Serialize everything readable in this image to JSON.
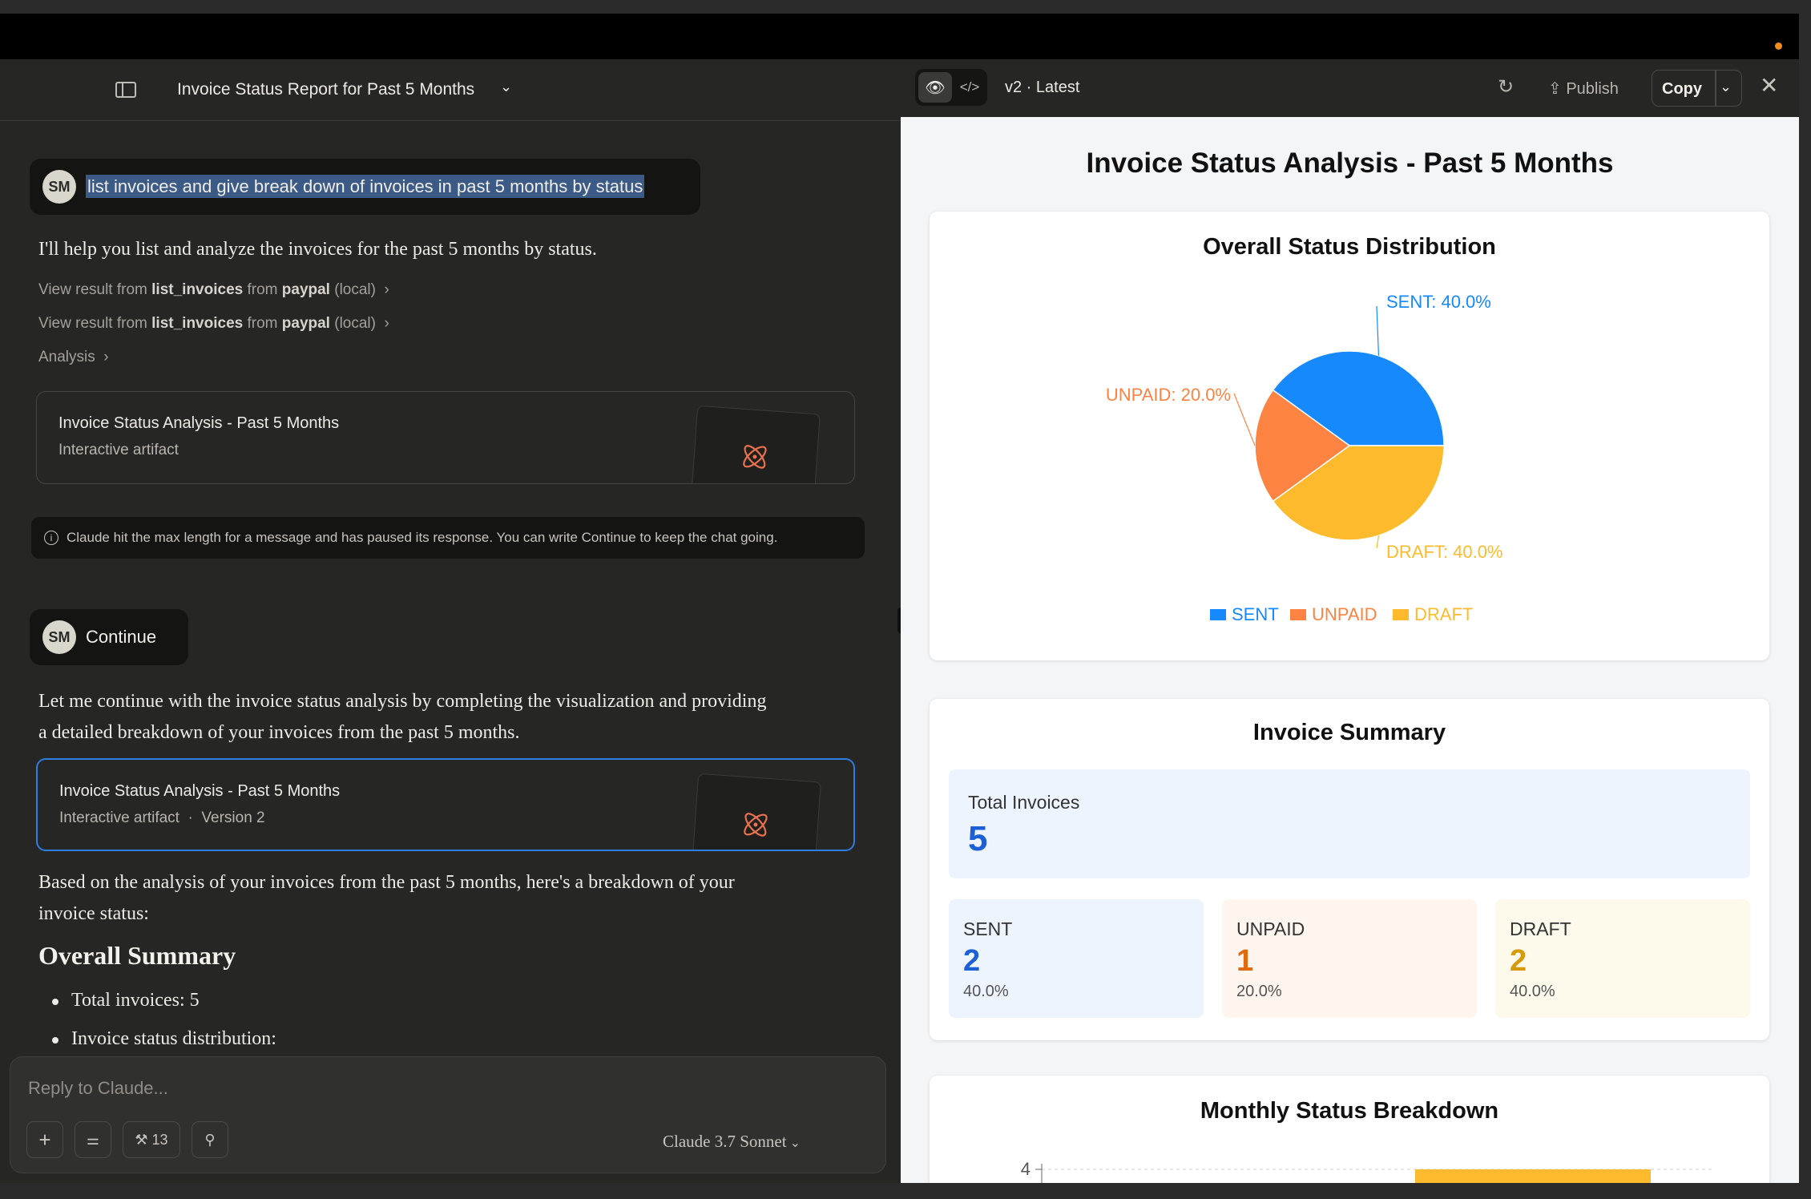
{
  "left": {
    "conversation_title": "Invoice Status Report for Past 5 Months",
    "messages": {
      "user1": {
        "initials": "SM",
        "text": "list invoices and give break down of invoices in past 5 months by status"
      },
      "assistant1": "I'll help you list and analyze the invoices for the past 5 months by status.",
      "tool1": {
        "prefix": "View result from ",
        "tool": "list_invoices",
        "mid": " from ",
        "server": "paypal",
        "suffix": " (local)"
      },
      "tool2": {
        "prefix": "View result from ",
        "tool": "list_invoices",
        "mid": " from ",
        "server": "paypal",
        "suffix": " (local)"
      },
      "analysis": "Analysis",
      "artifact1": {
        "title": "Invoice Status Analysis - Past 5 Months",
        "subtitle": "Interactive artifact"
      },
      "notice": "Claude hit the max length for a message and has paused its response. You can write Continue to keep the chat going.",
      "user2": {
        "initials": "SM",
        "text": "Continue"
      },
      "assistant2_line1": "Let me continue with the invoice status analysis by completing the visualization and providing",
      "assistant2_line2": "a detailed breakdown of your invoices from the past 5 months.",
      "artifact2": {
        "title": "Invoice Status Analysis - Past 5 Months",
        "subtitle": "Interactive artifact  ·  Version 2"
      },
      "assistant3_line1": "Based on the analysis of your invoices from the past 5 months, here's a breakdown of your",
      "assistant3_line2": "invoice status:",
      "heading": "Overall Summary",
      "bullet1": "Total invoices: 5",
      "bullet2": "Invoice status distribution:"
    },
    "composer": {
      "placeholder": "Reply to Claude...",
      "tools_count": "13",
      "model": "Claude 3.7 Sonnet"
    }
  },
  "right": {
    "version": "v2 · Latest",
    "publish": "Publish",
    "copy": "Copy",
    "page_title": "Invoice Status Analysis - Past 5 Months",
    "pie_card_title": "Overall Status Distribution",
    "summary_title": "Invoice Summary",
    "total_label": "Total Invoices",
    "total_value": "5",
    "stats": [
      {
        "label": "SENT",
        "value": "2",
        "pct": "40.0%",
        "color": "#1d5fd6",
        "bg": "#edf4fe"
      },
      {
        "label": "UNPAID",
        "value": "1",
        "pct": "20.0%",
        "color": "#e06a10",
        "bg": "#fdf5ee"
      },
      {
        "label": "DRAFT",
        "value": "2",
        "pct": "40.0%",
        "color": "#d69a0c",
        "bg": "#fdfaec"
      }
    ],
    "bar_card_title": "Monthly Status Breakdown",
    "bar_axis_top_tick": "4"
  },
  "chart_data": {
    "type": "pie",
    "title": "Overall Status Distribution",
    "slices": [
      {
        "label": "SENT",
        "value": 40.0,
        "color": "#1689fc",
        "data_label": "SENT: 40.0%"
      },
      {
        "label": "DRAFT",
        "value": 40.0,
        "color": "#fdba2c",
        "data_label": "DRAFT: 40.0%"
      },
      {
        "label": "UNPAID",
        "value": 20.0,
        "color": "#fd8343",
        "data_label": "UNPAID: 20.0%"
      }
    ],
    "legend": [
      "SENT",
      "UNPAID",
      "DRAFT"
    ],
    "legend_placement": "bottom"
  }
}
